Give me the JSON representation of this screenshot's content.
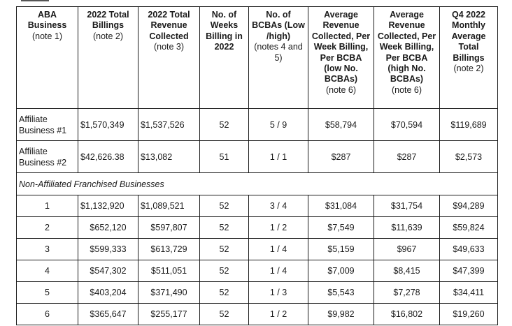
{
  "table": {
    "headers": [
      {
        "title": "ABA Business",
        "note": "(note 1)"
      },
      {
        "title": "2022 Total Billings",
        "note": "(note 2)"
      },
      {
        "title": "2022 Total Revenue Collected",
        "note": "(note 3)"
      },
      {
        "title": "No. of Weeks Billing in 2022",
        "note": ""
      },
      {
        "title": "No. of BCBAs (Low /high)",
        "note": "(notes 4 and 5)"
      },
      {
        "title": "Average Revenue Collected, Per Week Billing, Per BCBA (low No. BCBAs)",
        "note": "(note 6)"
      },
      {
        "title": "Average Revenue Collected, Per Week Billing, Per BCBA (high No. BCBAs)",
        "note": "(note 6)"
      },
      {
        "title": "Q4 2022 Monthly Average Total Billings",
        "note": "(note 2)"
      }
    ],
    "affiliate_rows": [
      {
        "business": "Affiliate Business #1",
        "billings": "$1,570,349",
        "revenue": "$1,537,526",
        "weeks": "52",
        "bcbas": "5 / 9",
        "avg_low": "$58,794",
        "avg_high": "$70,594",
        "q4": "$119,689"
      },
      {
        "business": "Affiliate Business #2",
        "billings": "$42,626.38",
        "revenue": "$13,082",
        "weeks": "51",
        "bcbas": "1 / 1",
        "avg_low": "$287",
        "avg_high": "$287",
        "q4": "$2,573"
      }
    ],
    "section_label": "Non-Affiliated Franchised Businesses",
    "franchise_rows": [
      {
        "business": "1",
        "billings": "$1,132,920",
        "revenue": "$1,089,521",
        "weeks": "52",
        "bcbas": "3 / 4",
        "avg_low": "$31,084",
        "avg_high": "$31,754",
        "q4": "$94,289"
      },
      {
        "business": "2",
        "billings": "$652,120",
        "revenue": "$597,807",
        "weeks": "52",
        "bcbas": "1 / 2",
        "avg_low": "$7,549",
        "avg_high": "$11,639",
        "q4": "$59,824"
      },
      {
        "business": "3",
        "billings": "$599,333",
        "revenue": "$613,729",
        "weeks": "52",
        "bcbas": "1 / 4",
        "avg_low": "$5,159",
        "avg_high": "$967",
        "q4": "$49,633"
      },
      {
        "business": "4",
        "billings": "$547,302",
        "revenue": "$511,051",
        "weeks": "52",
        "bcbas": "1 / 4",
        "avg_low": "$7,009",
        "avg_high": "$8,415",
        "q4": "$47,399"
      },
      {
        "business": "5",
        "billings": "$403,204",
        "revenue": "$371,490",
        "weeks": "52",
        "bcbas": "1 / 3",
        "avg_low": "$5,543",
        "avg_high": "$7,278",
        "q4": "$34,411"
      },
      {
        "business": "6",
        "billings": "$365,647",
        "revenue": "$255,177",
        "weeks": "52",
        "bcbas": "1 / 2",
        "avg_low": "$9,982",
        "avg_high": "$16,802",
        "q4": "$19,260"
      }
    ]
  }
}
